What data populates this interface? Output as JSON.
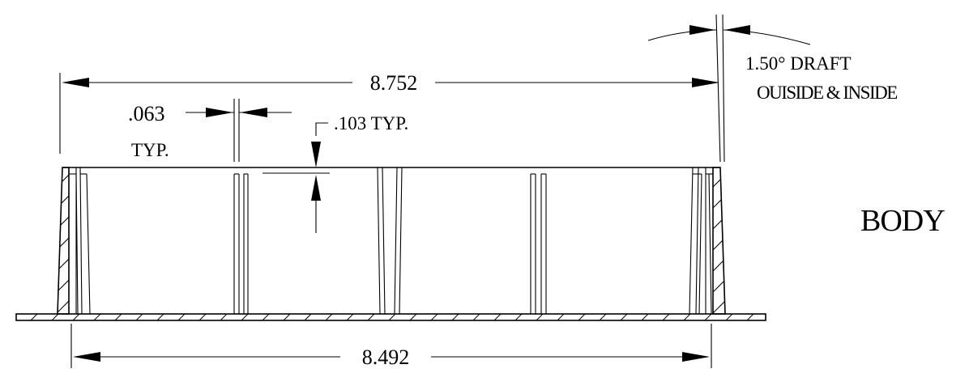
{
  "dimensions": {
    "top_width": "8.752",
    "bottom_width": "8.492",
    "wall_thickness": ".063",
    "wall_thickness_note": "TYP.",
    "rib_height": ".103 TYP."
  },
  "draft_note": {
    "angle": "1.50° DRAFT",
    "scope": "OUISIDE & INSIDE"
  },
  "part_label": "BODY"
}
